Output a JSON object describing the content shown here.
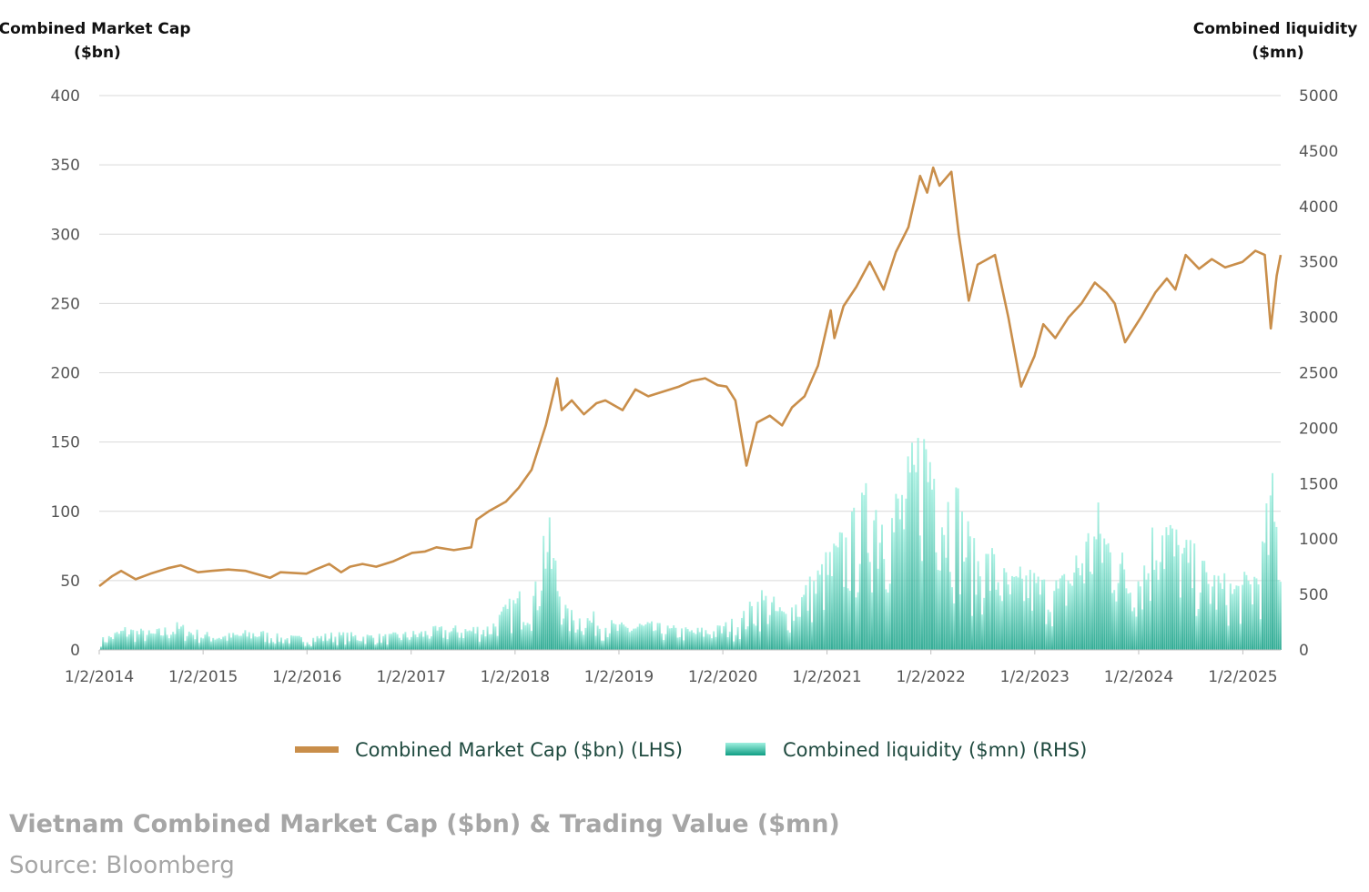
{
  "caption": "Vietnam Combined Market Cap ($bn) & Trading Value ($mn)",
  "source": "Source: Bloomberg",
  "colors": {
    "market_cap_line": "#c98e4a",
    "liquidity_dark": "#14a88c",
    "liquidity_light": "#7fe6d2",
    "grid": "#d9d9d9"
  },
  "chart_data": {
    "type": "line",
    "combined": "line + bar (dual axis)",
    "left_axis_title": [
      "Combined Market Cap",
      "($bn)"
    ],
    "right_axis_title": [
      "Combined liquidity",
      "($mn)"
    ],
    "left_ylim": [
      0,
      400
    ],
    "left_ticks": [
      "0",
      "50",
      "100",
      "150",
      "200",
      "250",
      "300",
      "350",
      "400"
    ],
    "right_ylim": [
      0,
      5000
    ],
    "right_ticks": [
      "0",
      "500",
      "1000",
      "1500",
      "2000",
      "2500",
      "3000",
      "3500",
      "4000",
      "4500",
      "5000"
    ],
    "x_tick_labels": [
      "1/2/2014",
      "1/2/2015",
      "1/2/2016",
      "1/2/2017",
      "1/2/2018",
      "1/2/2019",
      "1/2/2020",
      "1/2/2021",
      "1/2/2022",
      "1/2/2023",
      "1/2/2024",
      "1/2/2025"
    ],
    "xlim": [
      "2014-01-02",
      "2025-05-15"
    ],
    "grid": "horizontal",
    "legend_placement": "bottom-center",
    "series": [
      {
        "name": "Combined Market Cap ($bn) (LHS)",
        "axis": "left",
        "type": "line",
        "points": [
          [
            "2014-01-02",
            46
          ],
          [
            "2014-02-15",
            53
          ],
          [
            "2014-03-20",
            57
          ],
          [
            "2014-05-10",
            51
          ],
          [
            "2014-07-01",
            55
          ],
          [
            "2014-09-01",
            59
          ],
          [
            "2014-10-15",
            61
          ],
          [
            "2014-12-15",
            56
          ],
          [
            "2015-02-01",
            57
          ],
          [
            "2015-04-01",
            58
          ],
          [
            "2015-06-01",
            57
          ],
          [
            "2015-08-25",
            52
          ],
          [
            "2015-10-01",
            56
          ],
          [
            "2015-12-31",
            55
          ],
          [
            "2016-02-01",
            58
          ],
          [
            "2016-03-20",
            62
          ],
          [
            "2016-05-01",
            56
          ],
          [
            "2016-06-01",
            60
          ],
          [
            "2016-07-15",
            62
          ],
          [
            "2016-09-01",
            60
          ],
          [
            "2016-11-01",
            64
          ],
          [
            "2017-01-05",
            70
          ],
          [
            "2017-02-20",
            71
          ],
          [
            "2017-04-01",
            74
          ],
          [
            "2017-06-01",
            72
          ],
          [
            "2017-08-01",
            74
          ],
          [
            "2017-08-20",
            94
          ],
          [
            "2017-10-01",
            100
          ],
          [
            "2017-12-01",
            107
          ],
          [
            "2018-01-15",
            117
          ],
          [
            "2018-03-01",
            130
          ],
          [
            "2018-04-20",
            162
          ],
          [
            "2018-05-30",
            196
          ],
          [
            "2018-06-15",
            173
          ],
          [
            "2018-07-20",
            180
          ],
          [
            "2018-09-01",
            170
          ],
          [
            "2018-10-15",
            178
          ],
          [
            "2018-11-15",
            180
          ],
          [
            "2019-01-15",
            173
          ],
          [
            "2019-03-01",
            188
          ],
          [
            "2019-04-15",
            183
          ],
          [
            "2019-06-01",
            186
          ],
          [
            "2019-08-01",
            190
          ],
          [
            "2019-09-15",
            194
          ],
          [
            "2019-11-01",
            196
          ],
          [
            "2019-12-15",
            191
          ],
          [
            "2020-01-15",
            190
          ],
          [
            "2020-02-15",
            180
          ],
          [
            "2020-03-25",
            133
          ],
          [
            "2020-05-01",
            164
          ],
          [
            "2020-06-15",
            169
          ],
          [
            "2020-07-28",
            162
          ],
          [
            "2020-09-01",
            175
          ],
          [
            "2020-10-15",
            183
          ],
          [
            "2020-12-01",
            205
          ],
          [
            "2021-01-15",
            245
          ],
          [
            "2021-01-28",
            225
          ],
          [
            "2021-03-01",
            248
          ],
          [
            "2021-04-15",
            262
          ],
          [
            "2021-06-01",
            280
          ],
          [
            "2021-07-20",
            260
          ],
          [
            "2021-09-01",
            287
          ],
          [
            "2021-10-15",
            305
          ],
          [
            "2021-11-25",
            342
          ],
          [
            "2021-12-20",
            330
          ],
          [
            "2022-01-10",
            348
          ],
          [
            "2022-02-01",
            335
          ],
          [
            "2022-03-15",
            345
          ],
          [
            "2022-04-10",
            300
          ],
          [
            "2022-05-15",
            252
          ],
          [
            "2022-06-15",
            278
          ],
          [
            "2022-08-15",
            285
          ],
          [
            "2022-10-01",
            240
          ],
          [
            "2022-11-15",
            190
          ],
          [
            "2023-01-01",
            212
          ],
          [
            "2023-02-01",
            235
          ],
          [
            "2023-03-15",
            225
          ],
          [
            "2023-05-01",
            240
          ],
          [
            "2023-06-15",
            250
          ],
          [
            "2023-08-01",
            265
          ],
          [
            "2023-09-10",
            258
          ],
          [
            "2023-10-10",
            250
          ],
          [
            "2023-11-15",
            222
          ],
          [
            "2024-01-10",
            240
          ],
          [
            "2024-03-01",
            258
          ],
          [
            "2024-04-10",
            268
          ],
          [
            "2024-05-10",
            260
          ],
          [
            "2024-06-15",
            285
          ],
          [
            "2024-08-01",
            275
          ],
          [
            "2024-09-15",
            282
          ],
          [
            "2024-11-01",
            276
          ],
          [
            "2025-01-01",
            280
          ],
          [
            "2025-02-15",
            288
          ],
          [
            "2025-03-20",
            285
          ],
          [
            "2025-04-10",
            232
          ],
          [
            "2025-05-01",
            270
          ],
          [
            "2025-05-15",
            285
          ]
        ]
      },
      {
        "name": "Combined liquidity ($mn) (RHS)",
        "axis": "right",
        "type": "bar",
        "points": [
          [
            "2014-01-15",
            120
          ],
          [
            "2014-04-01",
            230
          ],
          [
            "2014-07-01",
            180
          ],
          [
            "2014-10-01",
            260
          ],
          [
            "2015-01-01",
            170
          ],
          [
            "2015-04-01",
            160
          ],
          [
            "2015-07-01",
            200
          ],
          [
            "2015-10-01",
            140
          ],
          [
            "2016-01-01",
            130
          ],
          [
            "2016-04-01",
            170
          ],
          [
            "2016-07-01",
            160
          ],
          [
            "2016-10-01",
            150
          ],
          [
            "2017-01-01",
            180
          ],
          [
            "2017-04-01",
            220
          ],
          [
            "2017-07-01",
            230
          ],
          [
            "2017-10-01",
            250
          ],
          [
            "2018-01-01",
            540
          ],
          [
            "2018-03-15",
            640
          ],
          [
            "2018-04-15",
            1400
          ],
          [
            "2018-07-01",
            380
          ],
          [
            "2018-10-01",
            350
          ],
          [
            "2019-01-01",
            250
          ],
          [
            "2019-03-15",
            280
          ],
          [
            "2019-06-01",
            240
          ],
          [
            "2019-09-01",
            210
          ],
          [
            "2019-12-01",
            220
          ],
          [
            "2020-03-01",
            330
          ],
          [
            "2020-05-15",
            600
          ],
          [
            "2020-08-01",
            400
          ],
          [
            "2020-11-01",
            700
          ],
          [
            "2021-01-15",
            1000
          ],
          [
            "2021-04-01",
            1300
          ],
          [
            "2021-06-15",
            1700
          ],
          [
            "2021-08-15",
            1500
          ],
          [
            "2021-10-15",
            1800
          ],
          [
            "2021-11-20",
            2200
          ],
          [
            "2022-01-01",
            2300
          ],
          [
            "2022-02-15",
            1700
          ],
          [
            "2022-04-01",
            1600
          ],
          [
            "2022-06-01",
            1000
          ],
          [
            "2022-08-01",
            1000
          ],
          [
            "2022-10-01",
            700
          ],
          [
            "2022-12-01",
            800
          ],
          [
            "2023-02-01",
            700
          ],
          [
            "2023-04-01",
            700
          ],
          [
            "2023-06-15",
            1100
          ],
          [
            "2023-08-15",
            1400
          ],
          [
            "2023-10-01",
            1100
          ],
          [
            "2023-12-01",
            800
          ],
          [
            "2024-02-01",
            1000
          ],
          [
            "2024-03-15",
            1600
          ],
          [
            "2024-05-01",
            1200
          ],
          [
            "2024-07-01",
            1000
          ],
          [
            "2024-09-01",
            800
          ],
          [
            "2024-11-01",
            700
          ],
          [
            "2025-01-01",
            700
          ],
          [
            "2025-03-01",
            900
          ],
          [
            "2025-04-10",
            1700
          ],
          [
            "2025-05-15",
            1100
          ]
        ]
      }
    ]
  }
}
